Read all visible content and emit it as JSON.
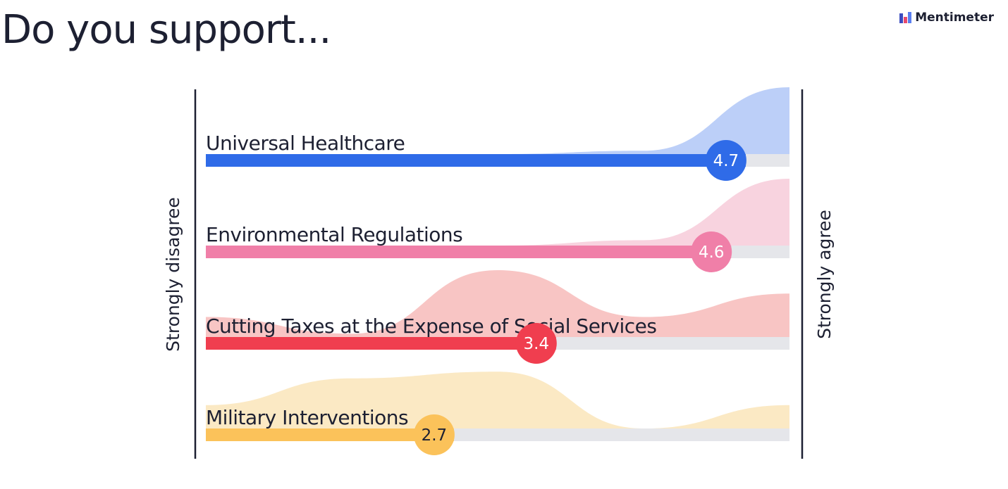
{
  "title": "Do you support...",
  "brand": {
    "name": "Mentimeter",
    "icon": "mentimeter-logo-icon"
  },
  "chart_data": {
    "type": "bar",
    "scale": {
      "min": 1,
      "max": 5
    },
    "left_label": "Strongly disagree",
    "right_label": "Strongly agree",
    "track_color": "#e5e6ea",
    "items": [
      {
        "label": "Universal Healthcare",
        "value": 4.7,
        "value_text": "4.7",
        "color": "#2f6be8",
        "fill": "#bccff8",
        "text_color": "#ffffff",
        "distribution": [
          0.0,
          0.0,
          0.0,
          0.05,
          1.0
        ]
      },
      {
        "label": "Environmental Regulations",
        "value": 4.6,
        "value_text": "4.6",
        "color": "#f07fa8",
        "fill": "#f8d3df",
        "text_color": "#ffffff",
        "distribution": [
          0.0,
          0.0,
          0.0,
          0.08,
          1.0
        ]
      },
      {
        "label": "Cutting Taxes at the Expense of Social Services",
        "value": 3.4,
        "value_text": "3.4",
        "color": "#f03e4f",
        "fill": "#f8c5c4",
        "text_color": "#ffffff",
        "distribution": [
          0.3,
          0.05,
          1.0,
          0.3,
          0.65
        ]
      },
      {
        "label": "Military Interventions",
        "value": 2.7,
        "value_text": "2.7",
        "color": "#fbc25a",
        "fill": "#fbe9c4",
        "text_color": "#1d2032",
        "distribution": [
          0.35,
          0.75,
          0.85,
          0.0,
          0.35
        ]
      }
    ]
  }
}
